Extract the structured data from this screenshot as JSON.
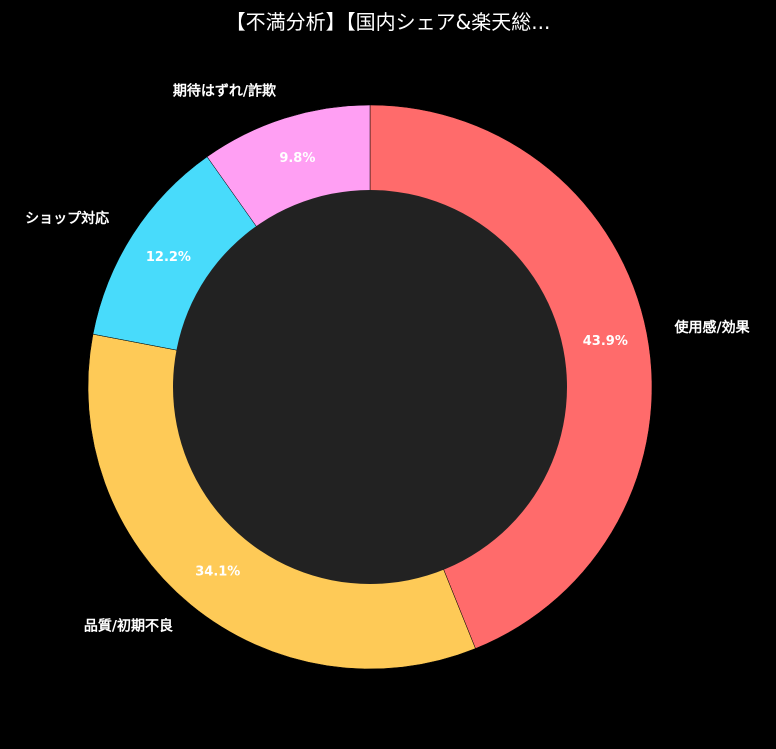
{
  "chart_data": {
    "type": "pie",
    "variant": "donut",
    "title": "【不満分析】【国内シェア&楽天総...",
    "categories": [
      "使用感/効果",
      "品質/初期不良",
      "ショップ対応",
      "期待はずれ/詐欺"
    ],
    "values": [
      43.9,
      34.1,
      12.2,
      9.8
    ],
    "value_labels": [
      "43.9%",
      "34.1%",
      "12.2%",
      "9.8%"
    ],
    "colors": [
      "#ff6b6b",
      "#feca57",
      "#48dbfb",
      "#ff9ff3"
    ],
    "center_color": "#222222",
    "start": "top",
    "direction": "clockwise",
    "legend": "none"
  }
}
